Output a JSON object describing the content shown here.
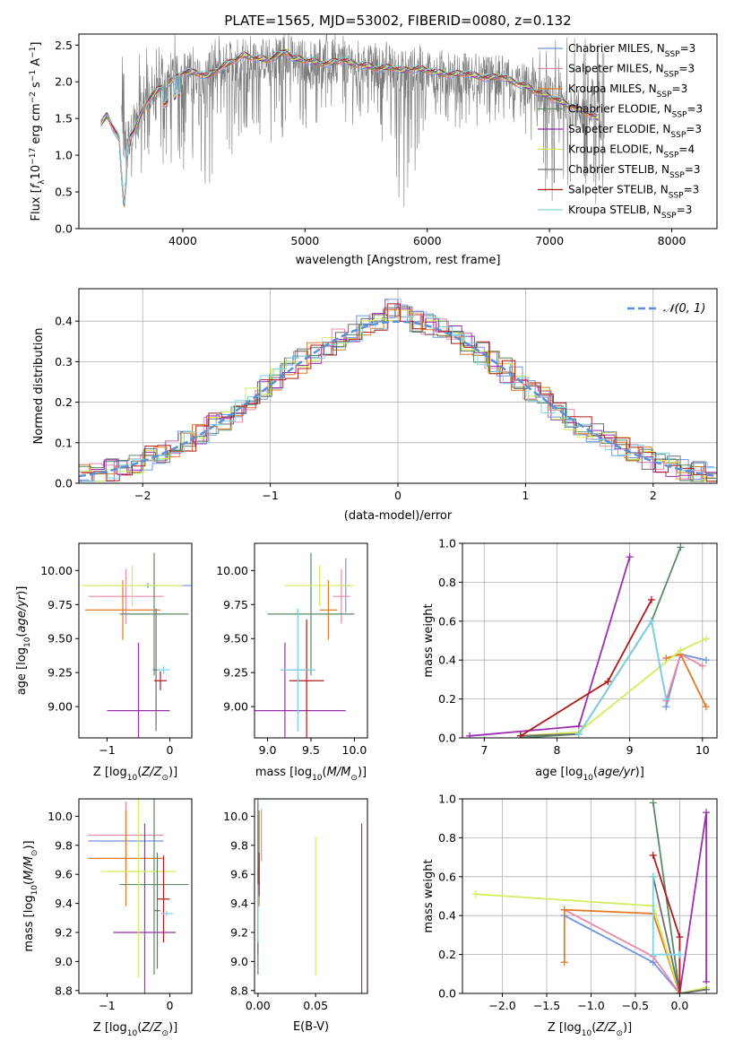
{
  "figure_title": "PLATE=1565, MJD=53002, FIBERID=0080, z=0.132",
  "colors": {
    "Chabrier MILES": "#6f95e3",
    "Salpeter MILES": "#e88aa8",
    "Kroupa MILES": "#e07a28",
    "Chabrier ELODIE": "#5a8a66",
    "Salpeter ELODIE": "#9b2fae",
    "Kroupa ELODIE": "#d0ee5c",
    "Chabrier STELIB": "#6e6e6e",
    "Salpeter STELIB": "#b01a1a",
    "Kroupa STELIB": "#7fd3e6",
    "data": "#7a7a7a",
    "normal": "#5b8fd6"
  },
  "chart_data": [
    {
      "id": "spectrum",
      "type": "line",
      "title": "PLATE=1565, MJD=53002, FIBERID=0080, z=0.132",
      "xlabel": "wavelength [Angstrom, rest frame]",
      "ylabel": "Flux [f_λ 10^-17 erg cm^-2 s^-1 A^-1]",
      "xlim": [
        3150,
        8370
      ],
      "ylim": [
        0,
        2.65
      ],
      "xticks": [
        "4000",
        "5000",
        "6000",
        "7000",
        "8000"
      ],
      "yticks": [
        "0.0",
        "0.5",
        "1.0",
        "1.5",
        "2.0",
        "2.5"
      ],
      "legend_position": "top-right",
      "legend": [
        "Chabrier MILES, N_SSP=3",
        "Salpeter MILES, N_SSP=3",
        "Kroupa MILES, N_SSP=3",
        "Chabrier ELODIE, N_SSP=3",
        "Salpeter ELODIE, N_SSP=3",
        "Kroupa ELODIE, N_SSP=4",
        "Chabrier STELIB, N_SSP=3",
        "Salpeter STELIB, N_SSP=3",
        "Kroupa STELIB, N_SSP=3"
      ],
      "model_curve": {
        "x": [
          3330,
          3380,
          3430,
          3500,
          3600,
          3700,
          3800,
          3900,
          4000,
          4100,
          4200,
          4300,
          4400,
          4500,
          4600,
          4700,
          4800,
          4850,
          4900,
          5000,
          5100,
          5200,
          5300,
          5400,
          5500,
          5600,
          5700,
          5800,
          5900,
          6000,
          6100,
          6200,
          6300,
          6400,
          6500,
          6600,
          6700,
          6800,
          6900,
          7000,
          7100,
          7200,
          7300,
          7400
        ],
        "y": [
          1.42,
          1.55,
          1.38,
          1.15,
          1.32,
          1.72,
          1.9,
          2.0,
          2.12,
          2.13,
          2.08,
          2.18,
          2.28,
          2.36,
          2.32,
          2.3,
          2.38,
          2.42,
          2.32,
          2.3,
          2.26,
          2.25,
          2.3,
          2.24,
          2.22,
          2.18,
          2.2,
          2.15,
          2.18,
          2.16,
          2.12,
          2.1,
          2.12,
          2.08,
          2.05,
          2.08,
          2.0,
          1.95,
          1.86,
          1.8,
          1.72,
          1.65,
          1.58,
          1.5
        ]
      },
      "data_envelope": {
        "x": [
          3500,
          3600,
          3700,
          3800,
          3900,
          4000,
          4100,
          4200,
          4300,
          4400,
          4500,
          4600,
          4700,
          4800,
          4900,
          5000,
          5200,
          5400,
          5600,
          5800,
          6000,
          6200,
          6400,
          6600,
          6800,
          7000,
          7200,
          7400
        ],
        "upper": [
          2.65,
          2.65,
          2.65,
          2.65,
          2.65,
          2.65,
          2.65,
          2.65,
          2.65,
          2.65,
          2.65,
          2.65,
          2.65,
          2.65,
          2.65,
          2.65,
          2.65,
          2.62,
          2.6,
          2.58,
          2.52,
          2.45,
          2.4,
          2.35,
          2.3,
          2.65,
          2.65,
          2.65
        ],
        "lower": [
          0.0,
          0.5,
          0.9,
          0.6,
          0.9,
          0.7,
          1.0,
          0.0,
          1.2,
          1.0,
          1.3,
          1.2,
          1.1,
          1.2,
          1.5,
          1.3,
          1.5,
          1.4,
          1.4,
          0.0,
          1.5,
          1.4,
          1.3,
          1.3,
          1.0,
          0.0,
          0.6,
          0.0
        ]
      }
    },
    {
      "id": "residuals",
      "type": "histogram",
      "xlabel": "(data-model)/error",
      "ylabel": "Normed distribution",
      "xlim": [
        -2.5,
        2.5
      ],
      "ylim": [
        0,
        0.48
      ],
      "xticks": [
        "−2",
        "−1",
        "0",
        "1",
        "2"
      ],
      "yticks": [
        "0.0",
        "0.1",
        "0.2",
        "0.3",
        "0.4"
      ],
      "grid": true,
      "legend_position": "top-right",
      "legend": [
        "𝒩(0, 1)"
      ],
      "bin_width": 0.1
    },
    {
      "id": "age-vs-Z",
      "type": "errorbar",
      "xlabel": "Z [log10(Z/Z⊙)]",
      "ylabel": "age  [log10(age/yr)]",
      "xlim": [
        -1.45,
        0.35
      ],
      "ylim": [
        8.77,
        10.2
      ],
      "xticks": [
        "−1",
        "0"
      ],
      "yticks": [
        "9.00",
        "9.25",
        "9.50",
        "9.75",
        "10.00"
      ],
      "points": [
        {
          "model": "Chabrier MILES",
          "x": -0.35,
          "xerr": 0.9,
          "y": 9.89,
          "yerr": 0.02
        },
        {
          "model": "Salpeter MILES",
          "x": -0.7,
          "xerr": 0.6,
          "y": 9.81,
          "yerr": 0.2
        },
        {
          "model": "Kroupa MILES",
          "x": -0.75,
          "xerr": 0.6,
          "y": 9.71,
          "yerr": 0.22
        },
        {
          "model": "Chabrier ELODIE",
          "x": -0.25,
          "xerr": 0.55,
          "y": 9.68,
          "yerr": 0.45
        },
        {
          "model": "Salpeter ELODIE",
          "x": -0.5,
          "xerr": 0.5,
          "y": 8.97,
          "yerr": 0.5
        },
        {
          "model": "Kroupa ELODIE",
          "x": -0.6,
          "xerr": 0.8,
          "y": 9.89,
          "yerr": 0.15
        },
        {
          "model": "Chabrier STELIB",
          "x": -0.22,
          "xerr": 0.05,
          "y": 9.27,
          "yerr": 0.45
        },
        {
          "model": "Salpeter STELIB",
          "x": -0.15,
          "xerr": 0.1,
          "y": 9.19,
          "yerr": 0.07
        },
        {
          "model": "Kroupa STELIB",
          "x": -0.1,
          "xerr": 0.1,
          "y": 9.27,
          "yerr": 0.03
        }
      ]
    },
    {
      "id": "age-vs-mass",
      "type": "errorbar",
      "xlabel": "mass [log10(M/M⊙)]",
      "xlim": [
        8.85,
        10.15
      ],
      "ylim": [
        8.77,
        10.2
      ],
      "xticks": [
        "9.0",
        "9.5",
        "10.0"
      ],
      "yticks": [
        "9.00",
        "9.25",
        "9.50",
        "9.75",
        "10.00"
      ],
      "points": [
        {
          "model": "Chabrier MILES",
          "x": 9.9,
          "xerr": 0.05,
          "y": 9.89,
          "yerr": 0.2
        },
        {
          "model": "Salpeter MILES",
          "x": 9.85,
          "xerr": 0.1,
          "y": 9.81,
          "yerr": 0.2
        },
        {
          "model": "Kroupa MILES",
          "x": 9.7,
          "xerr": 0.1,
          "y": 9.71,
          "yerr": 0.22
        },
        {
          "model": "Chabrier ELODIE",
          "x": 9.5,
          "xerr": 0.5,
          "y": 9.68,
          "yerr": 0.45
        },
        {
          "model": "Salpeter ELODIE",
          "x": 9.2,
          "xerr": 0.7,
          "y": 8.97,
          "yerr": 0.5
        },
        {
          "model": "Kroupa ELODIE",
          "x": 9.6,
          "xerr": 0.4,
          "y": 9.89,
          "yerr": 0.15
        },
        {
          "model": "Chabrier STELIB",
          "x": 9.35,
          "xerr": 0.2,
          "y": 9.27,
          "yerr": 0.45
        },
        {
          "model": "Salpeter STELIB",
          "x": 9.45,
          "xerr": 0.2,
          "y": 9.19,
          "yerr": 0.45
        },
        {
          "model": "Kroupa STELIB",
          "x": 9.35,
          "xerr": 0.2,
          "y": 9.27,
          "yerr": 0.45
        }
      ]
    },
    {
      "id": "massweight-vs-age",
      "type": "line",
      "xlabel": "age  [log10(age/yr)]",
      "ylabel": "mass weight",
      "xlim": [
        6.7,
        10.2
      ],
      "ylim": [
        0,
        1
      ],
      "xticks": [
        "7",
        "8",
        "9",
        "10"
      ],
      "yticks": [
        "0.0",
        "0.2",
        "0.4",
        "0.6",
        "0.8",
        "1.0"
      ],
      "grid": true,
      "series": [
        {
          "model": "Chabrier MILES",
          "x": [
            9.5,
            9.7,
            10.05
          ],
          "y": [
            0.16,
            0.43,
            0.4
          ]
        },
        {
          "model": "Salpeter MILES",
          "x": [
            9.5,
            9.7,
            10.0
          ],
          "y": [
            0.19,
            0.43,
            0.37
          ]
        },
        {
          "model": "Kroupa MILES",
          "x": [
            9.5,
            9.7,
            10.05
          ],
          "y": [
            0.41,
            0.43,
            0.16
          ]
        },
        {
          "model": "Chabrier ELODIE",
          "x": [
            7.5,
            8.3,
            9.3,
            9.7
          ],
          "y": [
            0.0,
            0.02,
            0.6,
            0.98
          ]
        },
        {
          "model": "Salpeter ELODIE",
          "x": [
            6.8,
            8.3,
            9.0
          ],
          "y": [
            0.01,
            0.06,
            0.93
          ]
        },
        {
          "model": "Kroupa ELODIE",
          "x": [
            7.5,
            8.3,
            9.7,
            10.05
          ],
          "y": [
            0.01,
            0.03,
            0.45,
            0.51
          ]
        },
        {
          "model": "Chabrier STELIB",
          "x": [
            7.5,
            8.3,
            9.3,
            9.5
          ],
          "y": [
            0.01,
            0.02,
            0.6,
            0.2
          ]
        },
        {
          "model": "Salpeter STELIB",
          "x": [
            7.5,
            8.7,
            9.3
          ],
          "y": [
            0.01,
            0.29,
            0.71
          ]
        },
        {
          "model": "Kroupa STELIB",
          "x": [
            8.3,
            9.3,
            9.5
          ],
          "y": [
            0.02,
            0.6,
            0.2
          ]
        }
      ]
    },
    {
      "id": "mass-vs-Z",
      "type": "errorbar",
      "xlabel": "Z [log10(Z/Z⊙)]",
      "ylabel": "mass [log10(M/M⊙)]",
      "xlim": [
        -1.45,
        0.35
      ],
      "ylim": [
        8.78,
        10.12
      ],
      "xticks": [
        "−1",
        "0"
      ],
      "yticks": [
        "8.8",
        "9.0",
        "9.2",
        "9.4",
        "9.6",
        "9.8",
        "10.0"
      ],
      "points": [
        {
          "model": "Chabrier MILES",
          "x": -0.7,
          "xerr": 0.6,
          "y": 9.83,
          "yerr": 0.27
        },
        {
          "model": "Salpeter MILES",
          "x": -0.7,
          "xerr": 0.6,
          "y": 9.87,
          "yerr": 0.23
        },
        {
          "model": "Kroupa MILES",
          "x": -0.7,
          "xerr": 0.6,
          "y": 9.71,
          "yerr": 0.33
        },
        {
          "model": "Chabrier ELODIE",
          "x": -0.25,
          "xerr": 0.55,
          "y": 9.53,
          "yerr": 0.62
        },
        {
          "model": "Salpeter ELODIE",
          "x": -0.4,
          "xerr": 0.5,
          "y": 9.2,
          "yerr": 0.75
        },
        {
          "model": "Kroupa ELODIE",
          "x": -0.5,
          "xerr": 0.6,
          "y": 9.62,
          "yerr": 0.73
        },
        {
          "model": "Chabrier STELIB",
          "x": -0.2,
          "xerr": 0.05,
          "y": 9.35,
          "yerr": 0.4
        },
        {
          "model": "Salpeter STELIB",
          "x": -0.1,
          "xerr": 0.1,
          "y": 9.43,
          "yerr": 0.3
        },
        {
          "model": "Kroupa STELIB",
          "x": -0.05,
          "xerr": 0.1,
          "y": 9.33,
          "yerr": 0.02
        }
      ]
    },
    {
      "id": "mass-vs-EBV",
      "type": "errorbar",
      "xlabel": "E(B-V)",
      "xlim": [
        -0.003,
        0.095
      ],
      "ylim": [
        8.78,
        10.12
      ],
      "xticks": [
        "0.00",
        "0.05"
      ],
      "yticks": [
        "8.8",
        "9.0",
        "9.2",
        "9.4",
        "9.6",
        "9.8",
        "10.0"
      ],
      "points": [
        {
          "model": "Chabrier MILES",
          "x": 0.0,
          "y": 9.83,
          "yerr": 0.27
        },
        {
          "model": "Salpeter MILES",
          "x": 0.003,
          "y": 9.87,
          "yerr": 0.18
        },
        {
          "model": "Kroupa MILES",
          "x": 0.001,
          "y": 9.71,
          "yerr": 0.33
        },
        {
          "model": "Chabrier ELODIE",
          "x": 0.0,
          "y": 9.53,
          "yerr": 0.62
        },
        {
          "model": "Salpeter ELODIE",
          "x": 0.09,
          "y": 9.2,
          "yerr": 0.75
        },
        {
          "model": "Kroupa ELODIE",
          "x": 0.05,
          "y": 9.38,
          "yerr": 0.48
        },
        {
          "model": "Chabrier STELIB",
          "x": 0.0,
          "y": 9.35,
          "yerr": 0.3
        },
        {
          "model": "Salpeter STELIB",
          "x": 0.001,
          "y": 9.6,
          "yerr": 0.15
        },
        {
          "model": "Kroupa STELIB",
          "x": 0.0,
          "y": 9.33,
          "yerr": 0.2
        }
      ]
    },
    {
      "id": "massweight-vs-Z",
      "type": "line",
      "xlabel": "Z [log10(Z/Z⊙)]",
      "ylabel": "mass weight",
      "xlim": [
        -2.45,
        0.42
      ],
      "ylim": [
        0,
        1
      ],
      "xticks": [
        "−2.0",
        "−1.5",
        "−1.0",
        "−0.5",
        "0.0"
      ],
      "yticks": [
        "0.0",
        "0.2",
        "0.4",
        "0.6",
        "0.8",
        "1.0"
      ],
      "grid": true,
      "series": [
        {
          "model": "Chabrier MILES",
          "x": [
            -1.3,
            -0.3,
            0.0
          ],
          "y": [
            0.4,
            0.16,
            0.0
          ]
        },
        {
          "model": "Salpeter MILES",
          "x": [
            -1.3,
            -0.3,
            0.0
          ],
          "y": [
            0.43,
            0.19,
            0.0
          ]
        },
        {
          "model": "Kroupa MILES",
          "x": [
            -1.3,
            -1.3,
            -0.3,
            0.0
          ],
          "y": [
            0.16,
            0.43,
            0.41,
            0.0
          ]
        },
        {
          "model": "Chabrier ELODIE",
          "x": [
            -0.3,
            0.0,
            0.3
          ],
          "y": [
            0.98,
            0.0,
            0.02
          ]
        },
        {
          "model": "Salpeter ELODIE",
          "x": [
            0.0,
            0.3,
            0.3
          ],
          "y": [
            0.0,
            0.93,
            0.06
          ]
        },
        {
          "model": "Kroupa ELODIE",
          "x": [
            -2.3,
            -0.3,
            0.0,
            0.3
          ],
          "y": [
            0.51,
            0.45,
            0.0,
            0.03
          ]
        },
        {
          "model": "Chabrier STELIB",
          "x": [
            -0.3,
            0.0,
            0.3
          ],
          "y": [
            0.6,
            0.0,
            0.02
          ]
        },
        {
          "model": "Salpeter STELIB",
          "x": [
            -0.3,
            0.0,
            0.0
          ],
          "y": [
            0.71,
            0.29,
            0.0
          ]
        },
        {
          "model": "Kroupa STELIB",
          "x": [
            -0.3,
            -0.3,
            0.0
          ],
          "y": [
            0.6,
            0.2,
            0.2
          ]
        }
      ]
    }
  ]
}
